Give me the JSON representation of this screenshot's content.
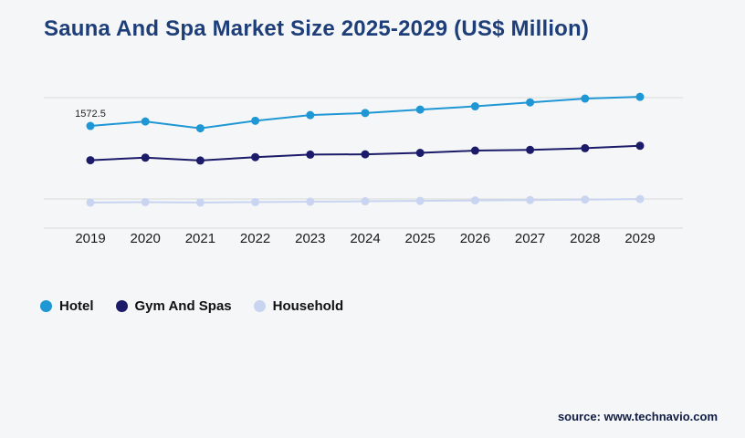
{
  "title": "Sauna And Spa Market Size 2025-2029 (US$ Million)",
  "source": "source: www.technavio.com",
  "colors": {
    "background": "#f5f6f8",
    "title": "#1d3e78",
    "axis_label": "#1a1a1a",
    "gridline": "#d9d9d9",
    "annotation": "#222222",
    "source": "#111c44",
    "hotel": "#1f97d4",
    "gym_and_spas": "#1b1b69",
    "household": "#c9d4f0"
  },
  "chart_data": {
    "type": "line",
    "categories": [
      "2019",
      "2020",
      "2021",
      "2022",
      "2023",
      "2024",
      "2025",
      "2026",
      "2027",
      "2028",
      "2029"
    ],
    "series": [
      {
        "name": "Hotel",
        "color": "#1f97d4",
        "values": [
          1572.5,
          1604,
          1556,
          1609,
          1649,
          1664,
          1688,
          1711,
          1739,
          1766,
          1778
        ]
      },
      {
        "name": "Gym And Spas",
        "color": "#1b1b69",
        "values": [
          1330,
          1348,
          1328,
          1352,
          1370,
          1372,
          1382,
          1398,
          1403,
          1415,
          1432
        ]
      },
      {
        "name": "Household",
        "color": "#c9d4f0",
        "values": [
          1031,
          1034,
          1031,
          1034,
          1037,
          1040,
          1043,
          1046,
          1048,
          1052,
          1056
        ]
      }
    ],
    "ylim": [
      850,
      1850
    ],
    "grid": "horizontal",
    "legend_position": "bottom-left",
    "point_label": {
      "series": "Hotel",
      "category": "2019",
      "text": "1572.5"
    }
  }
}
